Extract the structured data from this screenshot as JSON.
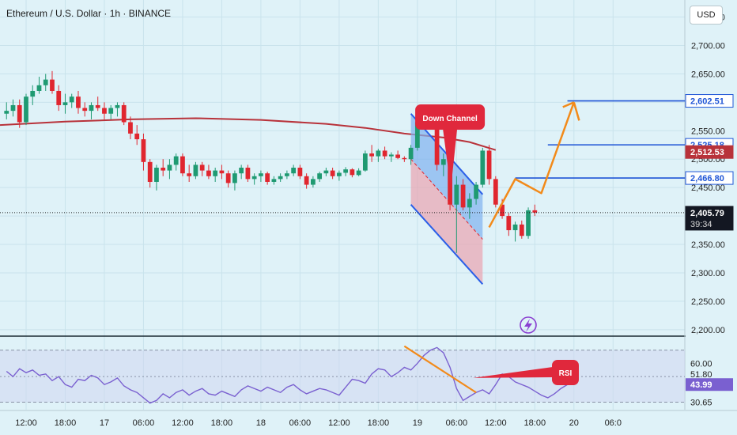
{
  "header": {
    "title": "Ethereum / U.S. Dollar · 1h · BINANCE",
    "currency_button": "USD"
  },
  "colors": {
    "background": "#dff2f8",
    "bull": "#1f9a72",
    "bear": "#e0262f",
    "ma": "#b8323a",
    "channel_fill": "#7fb2f0",
    "channel_fill_red": "#eaa4b0",
    "channel_line": "#2a5fe8",
    "projection": "#f28a1a",
    "level_line": "#1f55d6",
    "label_red": "#e0283c",
    "rsi_line": "#7a60d0",
    "rsi_band": "#cfd7f0",
    "axis_label_bg": "#ffffff",
    "price_label_bg": "#131722"
  },
  "chart_data": [
    {
      "type": "candlestick",
      "y_axis": {
        "ticks": [
          2750,
          2700,
          2650,
          2600,
          2550,
          2500,
          2450,
          2400,
          2350,
          2300,
          2250,
          2200
        ],
        "tick_labels": [
          "2,750.00",
          "2,700.00",
          "2,650.00",
          "2,600.00",
          "2,550.00",
          "2,500.00",
          "2,450.00",
          "2,400.00",
          "2,350.00",
          "2,300.00",
          "2,250.00",
          "2,200.00"
        ],
        "range": [
          2190,
          2780
        ]
      },
      "x_axis": {
        "range_hours": [
          -10,
          95
        ],
        "tick_labels": [
          "12:00",
          "18:00",
          "17",
          "06:00",
          "12:00",
          "18:00",
          "18",
          "06:00",
          "12:00",
          "18:00",
          "19",
          "06:00",
          "12:00",
          "18:00",
          "20",
          "06:0"
        ],
        "tick_hours": [
          -6,
          0,
          6,
          12,
          18,
          24,
          30,
          36,
          42,
          48,
          54,
          60,
          66,
          72,
          78,
          84
        ]
      },
      "ohlc_hourly": [
        [
          2580,
          2600,
          2570,
          2585
        ],
        [
          2585,
          2605,
          2575,
          2595
        ],
        [
          2595,
          2605,
          2555,
          2565
        ],
        [
          2565,
          2615,
          2560,
          2610
        ],
        [
          2610,
          2630,
          2595,
          2620
        ],
        [
          2620,
          2645,
          2615,
          2630
        ],
        [
          2630,
          2650,
          2620,
          2640
        ],
        [
          2640,
          2655,
          2615,
          2620
        ],
        [
          2620,
          2630,
          2585,
          2595
        ],
        [
          2595,
          2615,
          2580,
          2600
        ],
        [
          2600,
          2615,
          2590,
          2610
        ],
        [
          2610,
          2620,
          2580,
          2590
        ],
        [
          2590,
          2600,
          2575,
          2585
        ],
        [
          2585,
          2600,
          2570,
          2595
        ],
        [
          2595,
          2610,
          2585,
          2590
        ],
        [
          2590,
          2600,
          2570,
          2580
        ],
        [
          2580,
          2595,
          2570,
          2590
        ],
        [
          2590,
          2600,
          2575,
          2595
        ],
        [
          2595,
          2600,
          2560,
          2565
        ],
        [
          2565,
          2575,
          2535,
          2545
        ],
        [
          2545,
          2560,
          2525,
          2535
        ],
        [
          2535,
          2545,
          2480,
          2495
        ],
        [
          2495,
          2500,
          2450,
          2460
        ],
        [
          2460,
          2490,
          2445,
          2485
        ],
        [
          2485,
          2500,
          2470,
          2480
        ],
        [
          2480,
          2500,
          2465,
          2490
        ],
        [
          2490,
          2510,
          2480,
          2505
        ],
        [
          2505,
          2510,
          2470,
          2475
        ],
        [
          2475,
          2490,
          2460,
          2470
        ],
        [
          2470,
          2495,
          2465,
          2490
        ],
        [
          2490,
          2495,
          2470,
          2480
        ],
        [
          2480,
          2490,
          2465,
          2470
        ],
        [
          2470,
          2485,
          2460,
          2480
        ],
        [
          2480,
          2490,
          2465,
          2475
        ],
        [
          2475,
          2480,
          2450,
          2458
        ],
        [
          2458,
          2480,
          2445,
          2475
        ],
        [
          2475,
          2490,
          2465,
          2485
        ],
        [
          2485,
          2490,
          2460,
          2465
        ],
        [
          2465,
          2475,
          2455,
          2470
        ],
        [
          2470,
          2480,
          2460,
          2475
        ],
        [
          2475,
          2478,
          2455,
          2460
        ],
        [
          2460,
          2470,
          2455,
          2465
        ],
        [
          2465,
          2475,
          2460,
          2470
        ],
        [
          2470,
          2480,
          2465,
          2475
        ],
        [
          2475,
          2490,
          2470,
          2485
        ],
        [
          2485,
          2490,
          2465,
          2470
        ],
        [
          2470,
          2475,
          2448,
          2455
        ],
        [
          2455,
          2470,
          2450,
          2465
        ],
        [
          2465,
          2478,
          2460,
          2475
        ],
        [
          2475,
          2485,
          2470,
          2480
        ],
        [
          2480,
          2485,
          2465,
          2470
        ],
        [
          2470,
          2480,
          2462,
          2476
        ],
        [
          2476,
          2486,
          2470,
          2482
        ],
        [
          2482,
          2484,
          2468,
          2472
        ],
        [
          2472,
          2484,
          2470,
          2480
        ],
        [
          2480,
          2515,
          2478,
          2510
        ],
        [
          2510,
          2525,
          2495,
          2505
        ],
        [
          2505,
          2518,
          2495,
          2515
        ],
        [
          2515,
          2522,
          2500,
          2505
        ],
        [
          2505,
          2512,
          2495,
          2508
        ],
        [
          2508,
          2515,
          2500,
          2502
        ],
        [
          2502,
          2505,
          2495,
          2500
        ],
        [
          2500,
          2525,
          2490,
          2520
        ],
        [
          2520,
          2570,
          2515,
          2565
        ],
        [
          2565,
          2585,
          2560,
          2580
        ],
        [
          2580,
          2585,
          2560,
          2565
        ],
        [
          2565,
          2570,
          2480,
          2490
        ],
        [
          2490,
          2510,
          2470,
          2500
        ],
        [
          2500,
          2505,
          2410,
          2420
        ],
        [
          2420,
          2470,
          2335,
          2455
        ],
        [
          2455,
          2465,
          2410,
          2415
        ],
        [
          2415,
          2440,
          2395,
          2430
        ],
        [
          2430,
          2460,
          2420,
          2455
        ],
        [
          2455,
          2520,
          2450,
          2515
        ],
        [
          2515,
          2525,
          2455,
          2465
        ],
        [
          2465,
          2470,
          2415,
          2420
        ],
        [
          2420,
          2430,
          2395,
          2400
        ],
        [
          2400,
          2405,
          2365,
          2375
        ],
        [
          2375,
          2390,
          2355,
          2385
        ],
        [
          2385,
          2392,
          2360,
          2365
        ],
        [
          2365,
          2415,
          2360,
          2410
        ],
        [
          2410,
          2420,
          2400,
          2406
        ]
      ],
      "candle_start_hour": -9,
      "ma_series": [
        [
          -10,
          2560
        ],
        [
          0,
          2566
        ],
        [
          10,
          2570
        ],
        [
          20,
          2572
        ],
        [
          30,
          2569
        ],
        [
          40,
          2562
        ],
        [
          46,
          2555
        ],
        [
          52,
          2545
        ],
        [
          58,
          2538
        ],
        [
          62,
          2530
        ],
        [
          66,
          2516
        ]
      ],
      "channel": {
        "upper": [
          [
            53,
            2580
          ],
          [
            64,
            2438
          ]
        ],
        "lower": [
          [
            53,
            2420
          ],
          [
            64,
            2280
          ]
        ]
      },
      "projection_path": [
        [
          65,
          2380
        ],
        [
          69,
          2465
        ],
        [
          73,
          2440
        ],
        [
          78,
          2600
        ],
        [
          78.8,
          2568
        ]
      ],
      "level_lines": [
        {
          "value": 2602.51,
          "from_hour": 77
        },
        {
          "value": 2525.18,
          "from_hour": 74
        },
        {
          "value": 2466.8,
          "from_hour": 69
        }
      ],
      "price_labels": [
        {
          "text": "2,602.51",
          "value": 2602.51,
          "style": "blue"
        },
        {
          "text": "2,525.18",
          "value": 2525.18,
          "style": "blue"
        },
        {
          "text": "2,512.53",
          "value": 2512.53,
          "style": "red"
        },
        {
          "text": "2,466.80",
          "value": 2466.8,
          "style": "blue"
        },
        {
          "text": "2,405.79",
          "value": 2405.79,
          "style": "dark",
          "subtext": "39:34"
        }
      ],
      "current_price": 2405.79,
      "callout": {
        "text": "Down Channel",
        "anchor_hour": 59,
        "anchor_value": 2448
      }
    },
    {
      "type": "line",
      "name": "RSI",
      "y_axis": {
        "ticks": [
          60,
          51.8,
          43.99,
          30.65
        ],
        "tick_labels": [
          "60.00",
          "51.80",
          "43.99",
          "30.65"
        ],
        "range": [
          25,
          80
        ]
      },
      "band": [
        30.65,
        70
      ],
      "values": [
        54,
        50,
        56,
        53,
        55,
        51,
        52,
        47,
        50,
        44,
        42,
        48,
        47,
        51,
        49,
        44,
        46,
        49,
        43,
        40,
        38,
        34,
        30,
        32,
        37,
        34,
        38,
        40,
        36,
        39,
        41,
        37,
        36,
        39,
        37,
        35,
        40,
        43,
        41,
        39,
        42,
        40,
        38,
        42,
        44,
        40,
        37,
        39,
        41,
        40,
        38,
        36,
        42,
        48,
        47,
        45,
        52,
        56,
        55,
        50,
        53,
        57,
        55,
        60,
        66,
        70,
        72,
        68,
        57,
        41,
        32,
        35,
        38,
        40,
        37,
        44,
        52,
        50,
        46,
        44,
        42,
        39,
        36,
        34,
        37,
        41,
        44,
        44
      ],
      "rsi_trend": [
        [
          52,
          73
        ],
        [
          63,
          38
        ]
      ],
      "current_rsi": 43.99,
      "callout": {
        "text": "RSI",
        "anchor_hour": 62.5,
        "anchor_value": 49
      }
    }
  ]
}
